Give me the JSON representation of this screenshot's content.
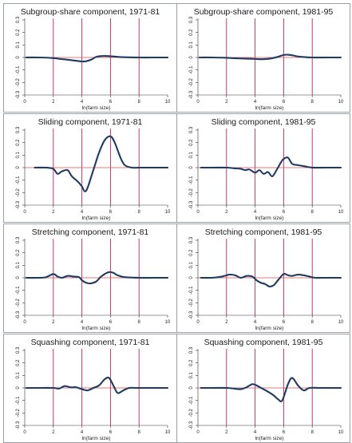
{
  "colors": {
    "curve": "#1f3b63",
    "vline": "#c0245c",
    "hline": "#e04a4a",
    "axis": "#333333",
    "frame": "#9aa0a8"
  },
  "chart_data": [
    {
      "type": "line",
      "title": "Subgroup-share component, 1971-81",
      "xlabel": "ln(farm size)",
      "ylabel": "",
      "xlim": [
        0,
        10
      ],
      "ylim": [
        -0.3,
        0.3
      ],
      "xticks": [
        0,
        2,
        4,
        6,
        8,
        10
      ],
      "yticks": [
        -0.3,
        -0.2,
        -0.1,
        0,
        0.1,
        0.2,
        0.3
      ],
      "vlines": [
        2,
        4,
        6,
        8
      ],
      "hline": 0,
      "series": [
        {
          "x": [
            0.1,
            1,
            2,
            2.5,
            3,
            3.5,
            4,
            4.3,
            4.7,
            5,
            5.5,
            6,
            6.5,
            7,
            8,
            9,
            10
          ],
          "y": [
            0,
            0,
            -0.005,
            -0.012,
            -0.018,
            -0.025,
            -0.032,
            -0.03,
            -0.015,
            0.005,
            0.012,
            0.01,
            0.005,
            0.002,
            0,
            0,
            0
          ]
        }
      ]
    },
    {
      "type": "line",
      "title": "Subgroup-share component, 1981-95",
      "xlabel": "ln(farm size)",
      "ylabel": "",
      "xlim": [
        0,
        10
      ],
      "ylim": [
        -0.3,
        0.3
      ],
      "xticks": [
        0,
        2,
        4,
        6,
        8,
        10
      ],
      "yticks": [
        -0.3,
        -0.2,
        -0.1,
        0,
        0.1,
        0.2,
        0.3
      ],
      "vlines": [
        2,
        4,
        6,
        8
      ],
      "hline": 0,
      "series": [
        {
          "x": [
            0.1,
            1,
            2,
            2.5,
            3,
            3.5,
            4,
            4.5,
            5,
            5.5,
            6,
            6.3,
            6.7,
            7,
            7.5,
            8,
            9,
            10
          ],
          "y": [
            0,
            0,
            -0.003,
            -0.006,
            -0.008,
            -0.01,
            -0.012,
            -0.014,
            -0.01,
            0.002,
            0.02,
            0.022,
            0.015,
            0.008,
            0.003,
            0,
            0,
            0
          ]
        }
      ]
    },
    {
      "type": "line",
      "title": "Sliding component, 1971-81",
      "xlabel": "ln(farm size)",
      "ylabel": "",
      "xlim": [
        0,
        10
      ],
      "ylim": [
        -0.3,
        0.3
      ],
      "xticks": [
        0,
        2,
        4,
        6,
        8,
        10
      ],
      "yticks": [
        -0.3,
        -0.2,
        -0.1,
        0,
        0.1,
        0.2,
        0.3
      ],
      "vlines": [
        2,
        4,
        6,
        8
      ],
      "hline": 0,
      "series": [
        {
          "x": [
            0.7,
            1.5,
            2,
            2.3,
            2.6,
            3,
            3.3,
            3.7,
            4,
            4.2,
            4.4,
            4.8,
            5.2,
            5.6,
            6,
            6.3,
            6.7,
            7,
            7.5,
            8,
            9,
            10
          ],
          "y": [
            0,
            0,
            -0.01,
            -0.05,
            -0.03,
            -0.02,
            -0.07,
            -0.11,
            -0.15,
            -0.19,
            -0.16,
            -0.02,
            0.12,
            0.22,
            0.25,
            0.2,
            0.08,
            0.02,
            0,
            0,
            0,
            0
          ]
        }
      ]
    },
    {
      "type": "line",
      "title": "Sliding component, 1981-95",
      "xlabel": "ln(farm size)",
      "ylabel": "",
      "xlim": [
        0,
        10
      ],
      "ylim": [
        -0.3,
        0.3
      ],
      "xticks": [
        0,
        2,
        4,
        6,
        8,
        10
      ],
      "yticks": [
        -0.3,
        -0.2,
        -0.1,
        0,
        0.1,
        0.2,
        0.3
      ],
      "vlines": [
        2,
        4,
        6,
        8
      ],
      "hline": 0,
      "series": [
        {
          "x": [
            0.2,
            1,
            2,
            2.5,
            3,
            3.3,
            3.6,
            4,
            4.3,
            4.6,
            4.9,
            5.2,
            5.5,
            5.8,
            6,
            6.3,
            6.6,
            7,
            7.5,
            8,
            9,
            10
          ],
          "y": [
            0,
            0,
            0,
            -0.005,
            -0.01,
            -0.02,
            -0.015,
            -0.04,
            -0.02,
            -0.05,
            -0.035,
            -0.07,
            -0.02,
            0.04,
            0.07,
            0.08,
            0.03,
            0.02,
            0.01,
            0,
            0,
            0
          ]
        }
      ]
    },
    {
      "type": "line",
      "title": "Stretching component, 1971-81",
      "xlabel": "ln(farm size)",
      "ylabel": "",
      "xlim": [
        0,
        10
      ],
      "ylim": [
        -0.3,
        0.3
      ],
      "xticks": [
        0,
        2,
        4,
        6,
        8,
        10
      ],
      "yticks": [
        -0.3,
        -0.2,
        -0.1,
        0,
        0.1,
        0.2,
        0.3
      ],
      "vlines": [
        2,
        4,
        6,
        8
      ],
      "hline": 0,
      "series": [
        {
          "x": [
            0.1,
            1,
            1.5,
            2,
            2.3,
            2.6,
            3,
            3.4,
            3.8,
            4,
            4.3,
            4.6,
            5,
            5.3,
            5.6,
            5.9,
            6.2,
            6.5,
            7,
            8,
            9,
            10
          ],
          "y": [
            0,
            0,
            0.005,
            0.03,
            0.01,
            0,
            0.015,
            0.01,
            0.005,
            -0.02,
            -0.04,
            -0.045,
            -0.03,
            0.005,
            0.03,
            0.045,
            0.04,
            0.02,
            0.005,
            0,
            0,
            0
          ]
        }
      ]
    },
    {
      "type": "line",
      "title": "Stretching component, 1981-95",
      "xlabel": "ln(farm size)",
      "ylabel": "",
      "xlim": [
        0,
        10
      ],
      "ylim": [
        -0.3,
        0.3
      ],
      "xticks": [
        0,
        2,
        4,
        6,
        8,
        10
      ],
      "yticks": [
        -0.3,
        -0.2,
        -0.1,
        0,
        0.1,
        0.2,
        0.3
      ],
      "vlines": [
        2,
        4,
        6,
        8
      ],
      "hline": 0,
      "series": [
        {
          "x": [
            0.2,
            1,
            1.7,
            2.2,
            2.6,
            3,
            3.4,
            3.8,
            4.1,
            4.4,
            4.7,
            5,
            5.3,
            5.6,
            6,
            6.3,
            6.6,
            7,
            7.4,
            7.8,
            8.2,
            9,
            10
          ],
          "y": [
            0,
            0,
            0.01,
            0.025,
            0.02,
            0,
            0.015,
            0.01,
            -0.02,
            -0.04,
            -0.05,
            -0.07,
            -0.06,
            -0.02,
            0.03,
            0.02,
            0.015,
            0.025,
            0.02,
            0.01,
            0,
            0,
            0
          ]
        }
      ]
    },
    {
      "type": "line",
      "title": "Squashing component, 1971-81",
      "xlabel": "ln(farm size)",
      "ylabel": "",
      "xlim": [
        0,
        10
      ],
      "ylim": [
        -0.3,
        0.3
      ],
      "xticks": [
        0,
        2,
        4,
        6,
        8,
        10
      ],
      "yticks": [
        -0.3,
        -0.2,
        -0.1,
        0,
        0.1,
        0.2,
        0.3
      ],
      "vlines": [
        2,
        4,
        6,
        8
      ],
      "hline": 0,
      "series": [
        {
          "x": [
            0.1,
            1,
            2,
            2.4,
            2.8,
            3.2,
            3.6,
            4,
            4.4,
            4.8,
            5.2,
            5.6,
            5.9,
            6.2,
            6.5,
            6.9,
            7.3,
            7.8,
            8.5,
            10
          ],
          "y": [
            0,
            0,
            0,
            -0.005,
            0.015,
            0.005,
            0.005,
            -0.01,
            -0.02,
            0,
            0.02,
            0.07,
            0.08,
            0.02,
            -0.04,
            -0.02,
            0,
            0,
            0,
            0
          ]
        }
      ]
    },
    {
      "type": "line",
      "title": "Squashing component, 1981-95",
      "xlabel": "ln(farm size)",
      "ylabel": "",
      "xlim": [
        0,
        10
      ],
      "ylim": [
        -0.3,
        0.3
      ],
      "xticks": [
        0,
        2,
        4,
        6,
        8,
        10
      ],
      "yticks": [
        -0.3,
        -0.2,
        -0.1,
        0,
        0.1,
        0.2,
        0.3
      ],
      "vlines": [
        2,
        4,
        6,
        8
      ],
      "hline": 0,
      "series": [
        {
          "x": [
            0.2,
            1,
            2,
            2.5,
            3,
            3.4,
            3.8,
            4.1,
            4.5,
            4.9,
            5.3,
            5.6,
            5.9,
            6.3,
            6.6,
            7,
            7.4,
            7.8,
            8.5,
            10
          ],
          "y": [
            0,
            0,
            0,
            -0.005,
            -0.01,
            0.005,
            0.03,
            0.02,
            -0.005,
            -0.03,
            -0.06,
            -0.09,
            -0.1,
            0.03,
            0.08,
            0.02,
            -0.02,
            0,
            0,
            0
          ]
        }
      ]
    }
  ]
}
